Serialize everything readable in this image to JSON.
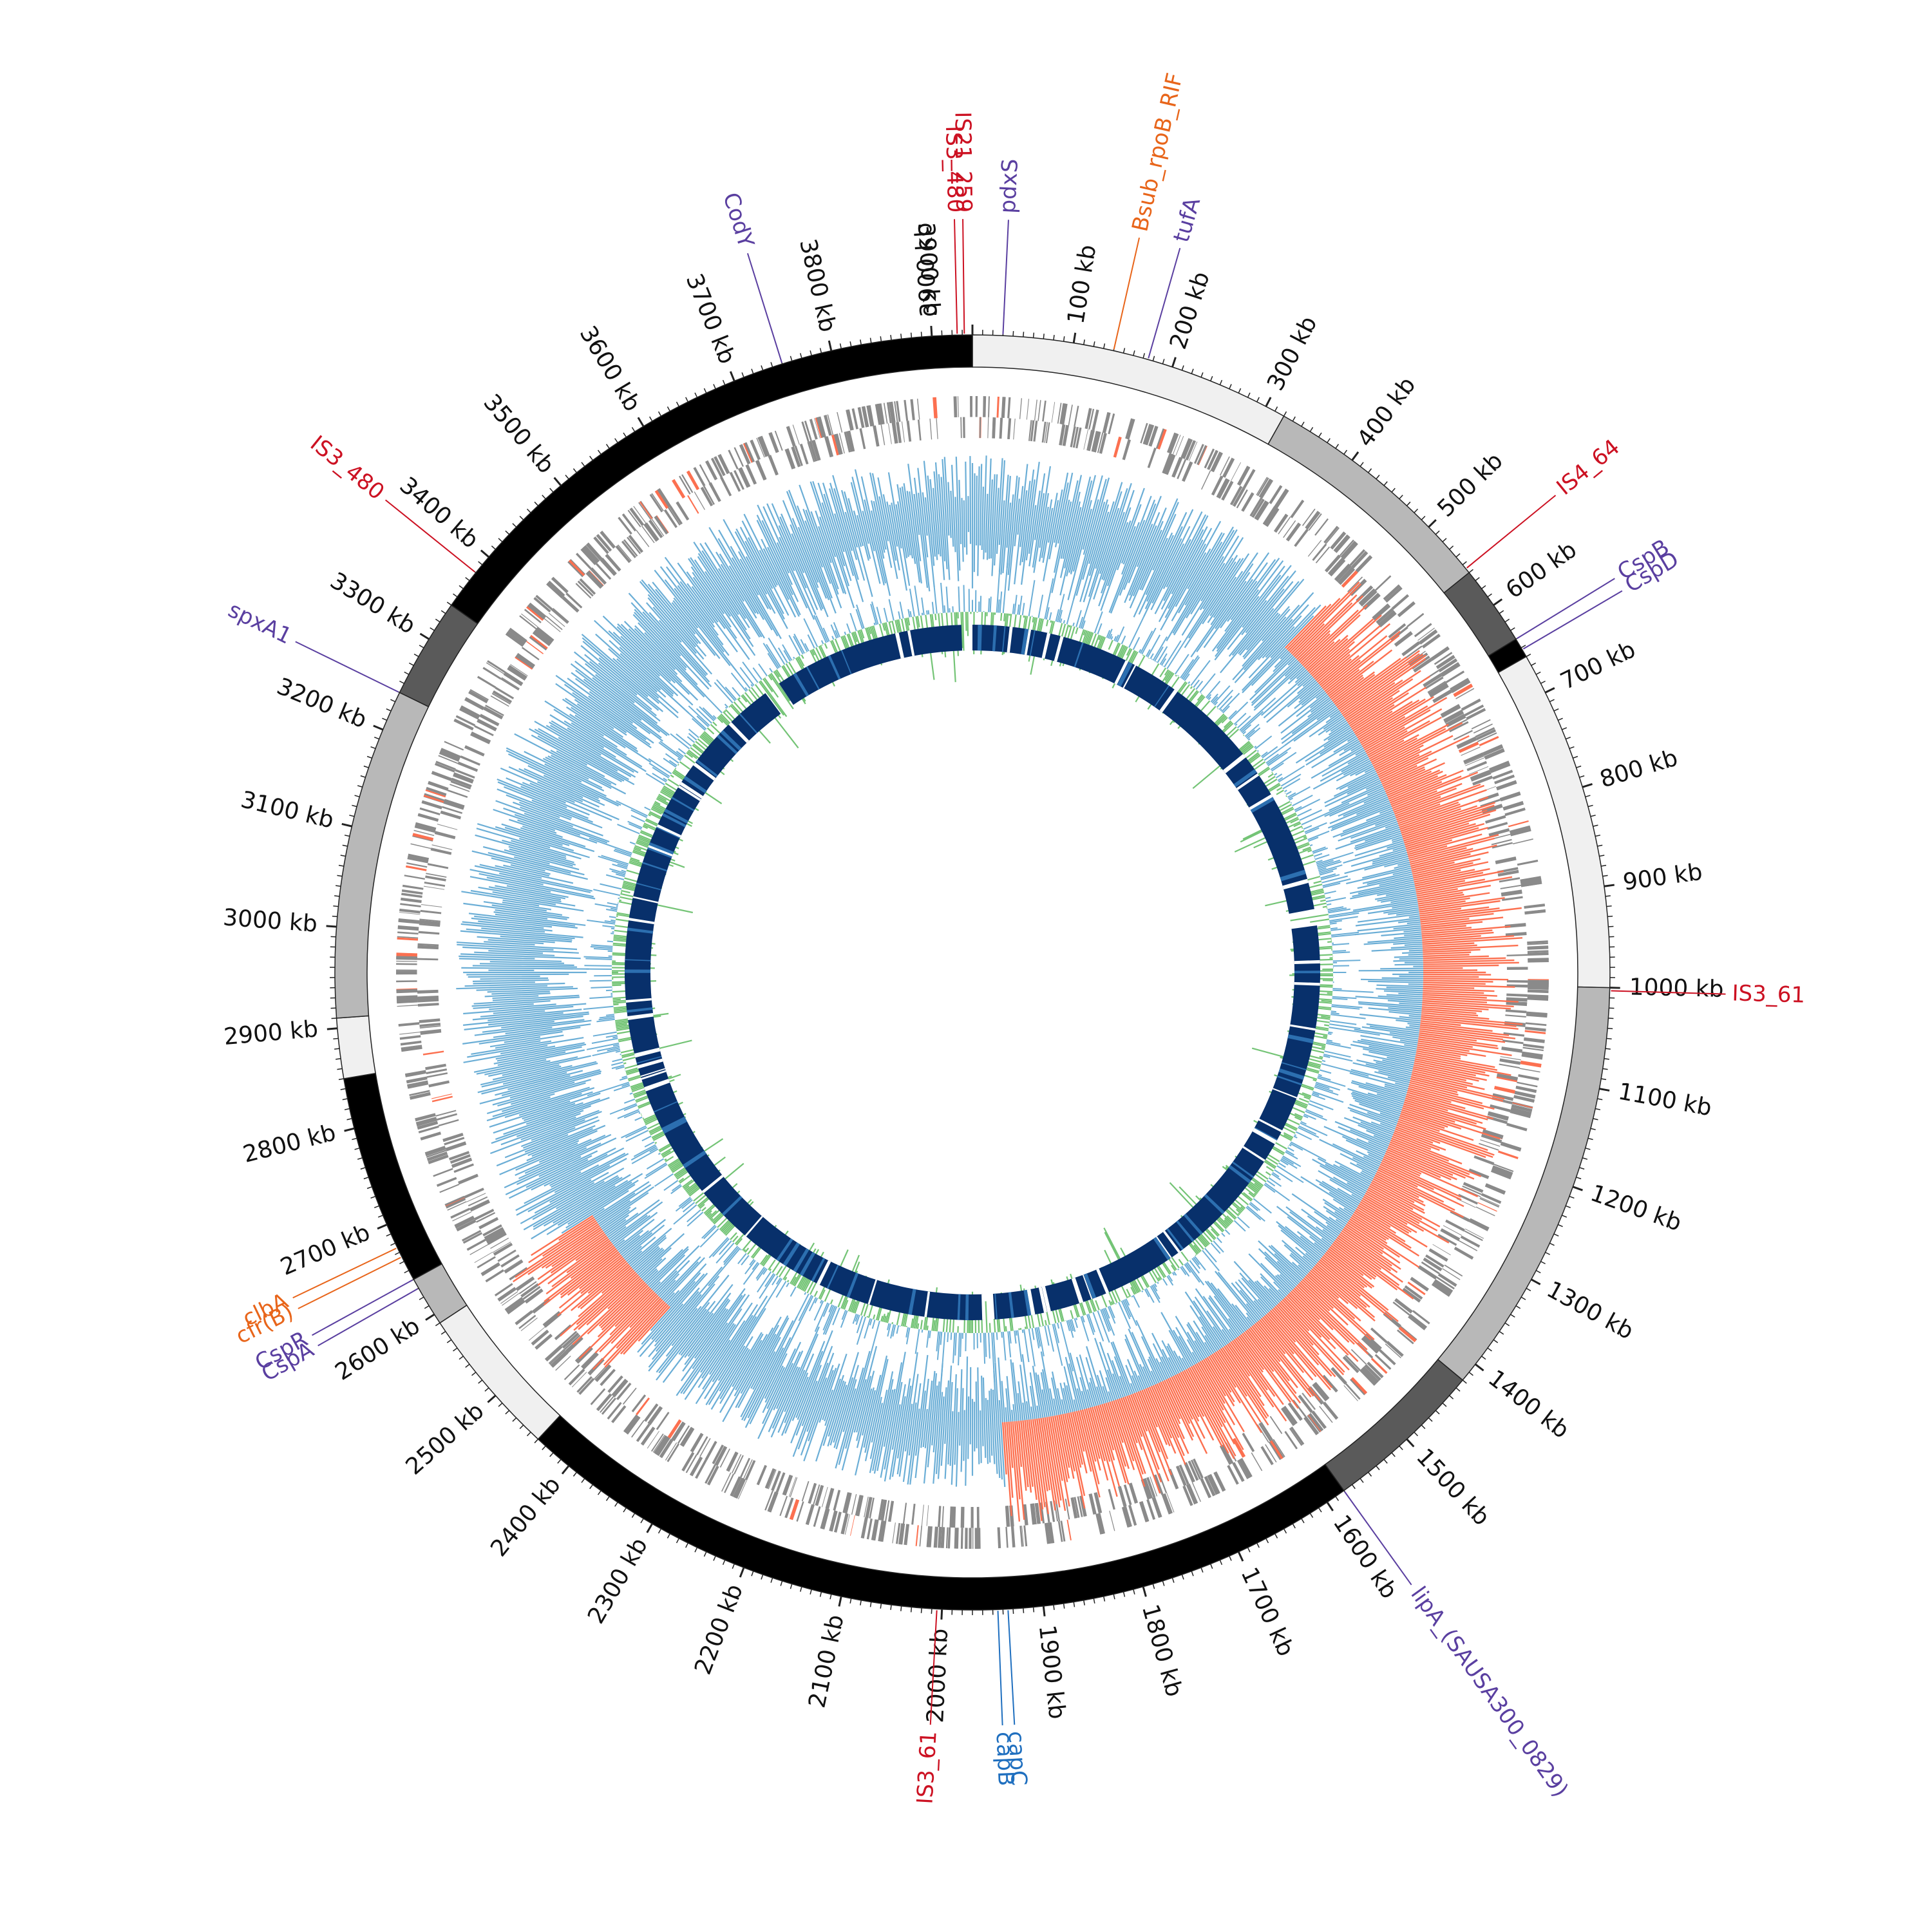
{
  "genome": {
    "total_kb": 3940,
    "tick_step_kb": 100,
    "tick_suffix": " kb"
  },
  "colors": {
    "black": "#000000",
    "dark_gray": "#5a5a5a",
    "mid_gray": "#b8b8b8",
    "light_gray": "#f0f0f0",
    "gene_gray": "#8a8a8a",
    "blue": "#6baed6",
    "red": "#fc7050",
    "green": "#74c476",
    "navy": "#08306b",
    "navy_light": "#2c6fb0",
    "label_red": "#cc1122",
    "label_orange": "#e8651a",
    "label_purple": "#5a3fa0",
    "label_blue": "#1f6fbf"
  },
  "outer_segments": [
    {
      "start": 0,
      "end": 320,
      "color": "light_gray"
    },
    {
      "start": 320,
      "end": 560,
      "color": "mid_gray"
    },
    {
      "start": 560,
      "end": 640,
      "color": "dark_gray"
    },
    {
      "start": 640,
      "end": 660,
      "color": "black"
    },
    {
      "start": 660,
      "end": 1000,
      "color": "light_gray"
    },
    {
      "start": 1000,
      "end": 1420,
      "color": "mid_gray"
    },
    {
      "start": 1420,
      "end": 1580,
      "color": "dark_gray"
    },
    {
      "start": 1580,
      "end": 2440,
      "color": "black"
    },
    {
      "start": 2440,
      "end": 2590,
      "color": "light_gray"
    },
    {
      "start": 2590,
      "end": 2640,
      "color": "mid_gray"
    },
    {
      "start": 2640,
      "end": 2850,
      "color": "black"
    },
    {
      "start": 2850,
      "end": 2910,
      "color": "light_gray"
    },
    {
      "start": 2910,
      "end": 3240,
      "color": "mid_gray"
    },
    {
      "start": 3240,
      "end": 3340,
      "color": "dark_gray"
    },
    {
      "start": 3340,
      "end": 3940,
      "color": "black"
    }
  ],
  "inner_arcs": [
    {
      "start": 0,
      "end": 870
    },
    {
      "start": 900,
      "end": 1930
    },
    {
      "start": 1950,
      "end": 3540
    },
    {
      "start": 3570,
      "end": 3920
    }
  ],
  "features": [
    {
      "pos": 3925,
      "label": "IS3_480",
      "color": "label_red"
    },
    {
      "pos": 3932,
      "label": "IS21_259",
      "color": "label_red"
    },
    {
      "pos": 30,
      "label": "pdxS",
      "color": "label_purple"
    },
    {
      "pos": 140,
      "label": "Bsub_rpoB_RIF",
      "color": "label_orange"
    },
    {
      "pos": 175,
      "label": "tufA",
      "color": "label_purple"
    },
    {
      "pos": 3750,
      "label": "CodY",
      "color": "label_purple"
    },
    {
      "pos": 555,
      "label": "IS4_64",
      "color": "label_red"
    },
    {
      "pos": 640,
      "label": "CspB",
      "color": "label_purple"
    },
    {
      "pos": 652,
      "label": "CspD",
      "color": "label_purple"
    },
    {
      "pos": 1003,
      "label": "IS3_61",
      "color": "label_red"
    },
    {
      "pos": 1580,
      "label": "lipA_(SAUSA300_0829)",
      "color": "label_purple"
    },
    {
      "pos": 1935,
      "label": "capC",
      "color": "label_blue"
    },
    {
      "pos": 1945,
      "label": "capB",
      "color": "label_blue"
    },
    {
      "pos": 2005,
      "label": "IS3_61",
      "color": "label_red"
    },
    {
      "pos": 2675,
      "label": "clbA",
      "color": "label_orange"
    },
    {
      "pos": 2665,
      "label": "cfr(B)",
      "color": "label_orange"
    },
    {
      "pos": 2640,
      "label": "CspR",
      "color": "label_purple"
    },
    {
      "pos": 2630,
      "label": "CspA",
      "color": "label_purple"
    },
    {
      "pos": 3240,
      "label": "spxA1",
      "color": "label_purple"
    },
    {
      "pos": 3380,
      "label": "IS3_480",
      "color": "label_red"
    }
  ]
}
